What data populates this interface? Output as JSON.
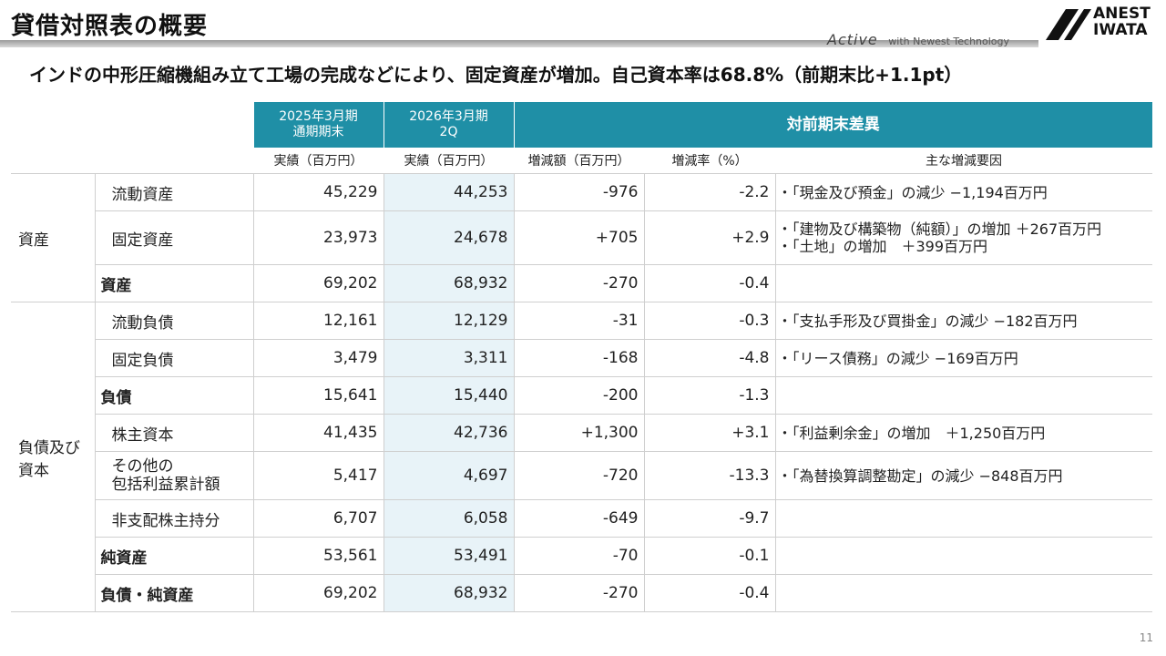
{
  "header": {
    "title": "貸借対照表の概要",
    "tagline_brand": "Active",
    "tagline_text": "with Newest Technology",
    "logo_line1": "ANEST",
    "logo_line2": "IWATA"
  },
  "subtitle": "インドの中形圧縮機組み立て工場の完成などにより、固定資産が増加。自己資本率は68.8%（前期末比+1.1pt）",
  "table": {
    "col_headers": {
      "prev_line1": "2025年3月期",
      "prev_line2": "通期期末",
      "curr_line1": "2026年3月期",
      "curr_line2": "2Q",
      "diff": "対前期末差異"
    },
    "unit_headers": {
      "prev": "実績（百万円）",
      "curr": "実績（百万円）",
      "diff_amount": "増減額（百万円）",
      "diff_rate": "増減率（%）",
      "factors": "主な増減要因"
    },
    "categories": {
      "assets": "資産",
      "liabilities_equity": "負債及び資本"
    },
    "rows": [
      {
        "label": "流動資産",
        "prev": "45,229",
        "curr": "44,253",
        "diff": "-976",
        "rate": "-2.2",
        "notes": [
          "・「現金及び預金」の減少 −1,194百万円"
        ]
      },
      {
        "label": "固定資産",
        "prev": "23,973",
        "curr": "24,678",
        "diff": "+705",
        "rate": "+2.9",
        "notes": [
          "・「建物及び構築物（純額）」の増加 ＋267百万円",
          "・「土地」の増加　＋399百万円"
        ]
      },
      {
        "label": "資産",
        "prev": "69,202",
        "curr": "68,932",
        "diff": "-270",
        "rate": "-0.4",
        "notes": []
      },
      {
        "label": "流動負債",
        "prev": "12,161",
        "curr": "12,129",
        "diff": "-31",
        "rate": "-0.3",
        "notes": [
          "・「支払手形及び買掛金」の減少 −182百万円"
        ]
      },
      {
        "label": "固定負債",
        "prev": "3,479",
        "curr": "3,311",
        "diff": "-168",
        "rate": "-4.8",
        "notes": [
          "・「リース債務」の減少 −169百万円"
        ]
      },
      {
        "label": "負債",
        "prev": "15,641",
        "curr": "15,440",
        "diff": "-200",
        "rate": "-1.3",
        "notes": []
      },
      {
        "label": "株主資本",
        "prev": "41,435",
        "curr": "42,736",
        "diff": "+1,300",
        "rate": "+3.1",
        "notes": [
          "・「利益剰余金」の増加　＋1,250百万円"
        ]
      },
      {
        "label_line1": "その他の",
        "label_line2": "包括利益累計額",
        "prev": "5,417",
        "curr": "4,697",
        "diff": "-720",
        "rate": "-13.3",
        "notes": [
          "・「為替換算調整勘定」の減少 −848百万円"
        ]
      },
      {
        "label": "非支配株主持分",
        "prev": "6,707",
        "curr": "6,058",
        "diff": "-649",
        "rate": "-9.7",
        "notes": []
      },
      {
        "label": "純資産",
        "prev": "53,561",
        "curr": "53,491",
        "diff": "-70",
        "rate": "-0.1",
        "notes": []
      },
      {
        "label": "負債・純資産",
        "prev": "69,202",
        "curr": "68,932",
        "diff": "-270",
        "rate": "-0.4",
        "notes": []
      }
    ]
  },
  "page_number": "11"
}
